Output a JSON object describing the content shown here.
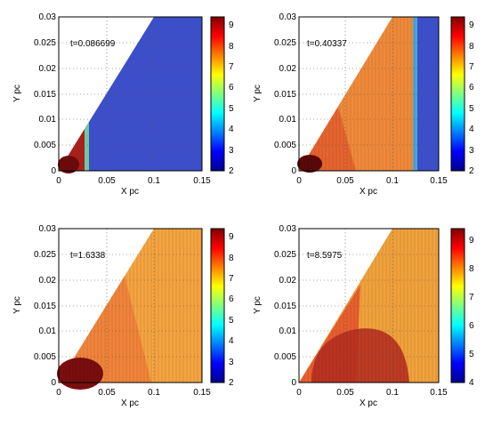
{
  "chart_data": [
    {
      "type": "heatmap",
      "annotation": "t=0.086699",
      "xlabel": "X pc",
      "ylabel": "Y pc",
      "xlim": [
        0,
        0.15
      ],
      "ylim": [
        0,
        0.03
      ],
      "xticks": [
        "0",
        "0.05",
        "0.1",
        "0.15"
      ],
      "yticks": [
        "0",
        "0.005",
        "0.01",
        "0.015",
        "0.02",
        "0.025",
        "0.03"
      ],
      "grid": true,
      "colorbar": {
        "ticks": [
          "2",
          "3",
          "4",
          "5",
          "6",
          "7",
          "8",
          "9"
        ],
        "range": [
          2,
          9.4
        ]
      },
      "domain_wedge": {
        "apex": [
          0,
          0
        ],
        "top_edge_x_at_ymax": 0.1
      },
      "front_x": 0.03,
      "field": {
        "behind_front": 9,
        "ahead_of_front": 2.2
      }
    },
    {
      "type": "heatmap",
      "annotation": "t=0.40337",
      "xlabel": "X pc",
      "ylabel": "Y pc",
      "xlim": [
        0,
        0.15
      ],
      "ylim": [
        0,
        0.03
      ],
      "xticks": [
        "0",
        "0.05",
        "0.1",
        "0.15"
      ],
      "yticks": [
        "0",
        "0.005",
        "0.01",
        "0.015",
        "0.02",
        "0.025",
        "0.03"
      ],
      "grid": true,
      "colorbar": {
        "ticks": [
          "2",
          "3",
          "4",
          "5",
          "6",
          "7",
          "8",
          "9"
        ],
        "range": [
          2,
          9.4
        ]
      },
      "domain_wedge": {
        "apex": [
          0,
          0
        ],
        "top_edge_x_at_ymax": 0.1
      },
      "front_x": 0.125,
      "field": {
        "behind_front": 8.5,
        "ahead_of_front": 2.2
      }
    },
    {
      "type": "heatmap",
      "annotation": "t=1.6338",
      "xlabel": "X pc",
      "ylabel": "Y pc",
      "xlim": [
        0,
        0.15
      ],
      "ylim": [
        0,
        0.03
      ],
      "xticks": [
        "0",
        "0.05",
        "0.1",
        "0.15"
      ],
      "yticks": [
        "0",
        "0.005",
        "0.01",
        "0.015",
        "0.02",
        "0.025",
        "0.03"
      ],
      "grid": true,
      "colorbar": {
        "ticks": [
          "2",
          "3",
          "4",
          "5",
          "6",
          "7",
          "8",
          "9"
        ],
        "range": [
          2,
          9.4
        ]
      },
      "domain_wedge": {
        "apex": [
          0,
          0
        ],
        "top_edge_x_at_ymax": 0.1
      },
      "field": {
        "background": 8.3,
        "near_axis": 9.3
      }
    },
    {
      "type": "heatmap",
      "annotation": "t=8.5975",
      "xlabel": "X pc",
      "ylabel": "Y pc",
      "xlim": [
        0,
        0.15
      ],
      "ylim": [
        0,
        0.03
      ],
      "xticks": [
        "0",
        "0.05",
        "0.1",
        "0.15"
      ],
      "yticks": [
        "0",
        "0.005",
        "0.01",
        "0.015",
        "0.02",
        "0.025",
        "0.03"
      ],
      "grid": true,
      "colorbar": {
        "ticks": [
          "4",
          "5",
          "6",
          "7",
          "8",
          "9"
        ],
        "range": [
          4,
          9.4
        ]
      },
      "domain_wedge": {
        "apex": [
          0,
          0
        ],
        "top_edge_x_at_ymax": 0.1
      },
      "field": {
        "background": 8.3,
        "near_axis": 9.3
      }
    }
  ]
}
